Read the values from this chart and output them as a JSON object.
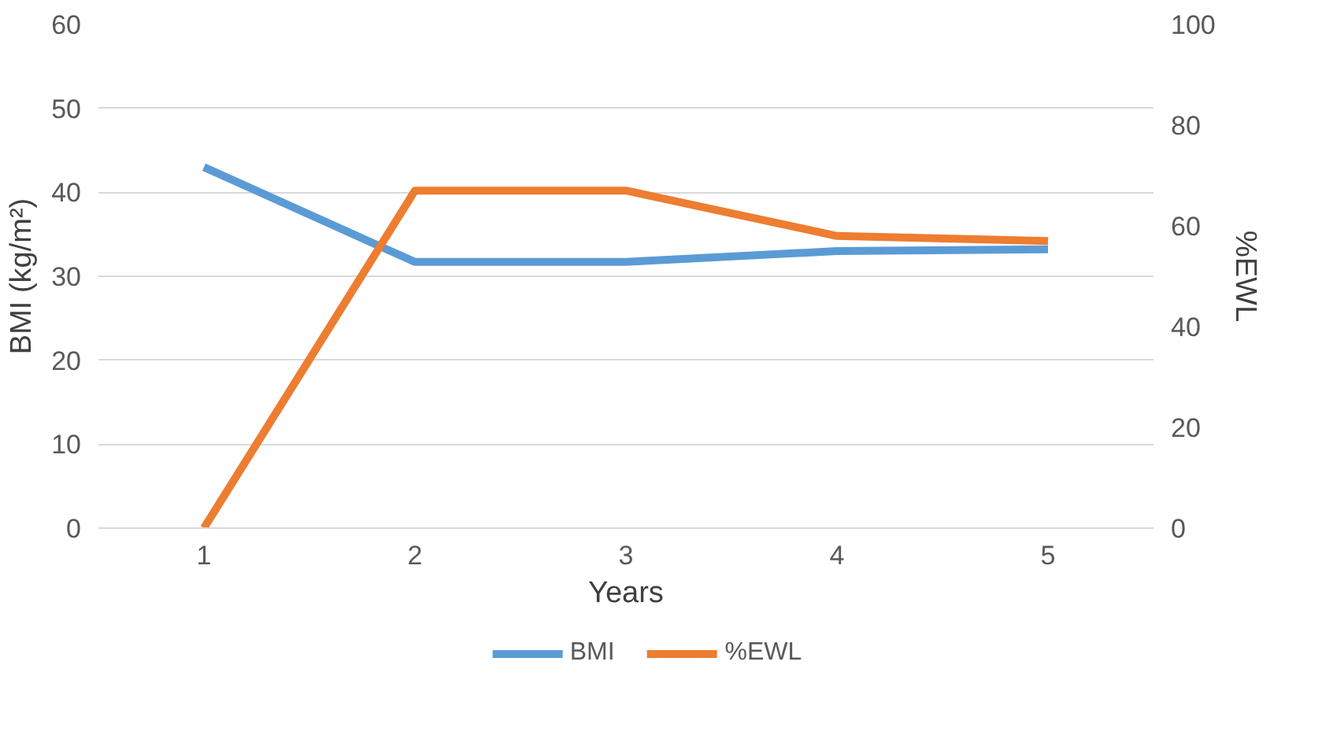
{
  "chart_data": {
    "type": "line",
    "xlabel": "Years",
    "ylabel": "BMI (kg/m²)",
    "y2label": "%EWL",
    "categories": [
      "1",
      "2",
      "3",
      "4",
      "5"
    ],
    "series": [
      {
        "name": "BMI",
        "color": "#5b9bd5",
        "values": [
          43,
          31.7,
          31.7,
          33,
          33.2
        ]
      },
      {
        "name": "%EWL",
        "color": "#ed7d31",
        "values": [
          0,
          67,
          67,
          58,
          57
        ],
        "axis": "y2"
      }
    ],
    "ylim": [
      0,
      60
    ],
    "yticks": [
      0,
      10,
      20,
      30,
      40,
      50,
      60
    ],
    "y2lim": [
      0,
      100
    ],
    "y2ticks": [
      0,
      20,
      40,
      60,
      80,
      100
    ],
    "grid": "y",
    "legend": "bottom",
    "marker": "none",
    "line_style": "solid"
  }
}
